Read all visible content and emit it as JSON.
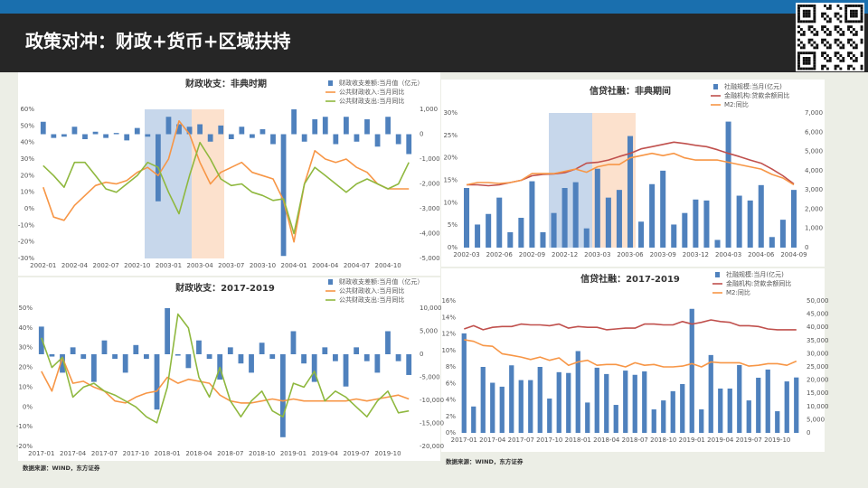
{
  "header": {
    "title": "政策对冲：财政+货币+区域扶持"
  },
  "sources": [
    "数据来源：WIND，东方证券",
    "数据来源：WIND，东方证券"
  ],
  "chart_data": [
    {
      "type": "combo",
      "title": "财政收支：非典时期",
      "legend": "top-right",
      "categories": [
        "2002-01",
        null,
        null,
        "2002-04",
        null,
        null,
        "2002-07",
        null,
        null,
        "2002-10",
        null,
        null,
        "2003-01",
        null,
        null,
        "2003-04",
        null,
        null,
        "2003-07",
        null,
        null,
        "2003-10",
        null,
        null,
        "2004-01",
        null,
        null,
        "2004-04",
        null,
        null,
        "2004-07",
        null,
        null,
        "2004-10",
        null,
        null
      ],
      "series": [
        {
          "name": "财政收支差额:当月值（亿元）",
          "type": "bar",
          "axis": "y2",
          "color": "#4f81bd",
          "values": [
            500,
            -150,
            -100,
            300,
            -200,
            100,
            -150,
            50,
            -250,
            250,
            -100,
            -2700,
            700,
            400,
            300,
            400,
            -300,
            350,
            -200,
            300,
            -150,
            200,
            -400,
            -4900,
            1000,
            -300,
            600,
            700,
            -400,
            700,
            -300,
            600,
            -500,
            700,
            -400,
            -800
          ]
        },
        {
          "name": "公共财政收入:当月同比",
          "type": "line",
          "color": "#f79646",
          "values": [
            13,
            -5,
            -7,
            2,
            8,
            14,
            16,
            15,
            17,
            22,
            25,
            20,
            30,
            53,
            45,
            28,
            15,
            22,
            25,
            28,
            22,
            20,
            18,
            5,
            -20,
            15,
            35,
            30,
            28,
            30,
            25,
            22,
            15,
            12,
            12,
            12
          ]
        },
        {
          "name": "公共财政支出:当月同比",
          "type": "line",
          "color": "#8fb83f",
          "values": [
            26,
            20,
            13,
            28,
            28,
            20,
            12,
            10,
            15,
            20,
            28,
            25,
            10,
            -3,
            20,
            40,
            30,
            18,
            14,
            15,
            10,
            8,
            5,
            6,
            -15,
            15,
            25,
            20,
            15,
            10,
            15,
            18,
            15,
            12,
            15,
            28
          ]
        }
      ],
      "ylim": [
        -30,
        60
      ],
      "yticks": [
        {
          "value": -30,
          "label": "-30%"
        },
        {
          "value": -20,
          "label": "-20%"
        },
        {
          "value": -10,
          "label": "-10%"
        },
        {
          "value": 0,
          "label": "0%"
        },
        {
          "value": 10,
          "label": "10%"
        },
        {
          "value": 20,
          "label": "20%"
        },
        {
          "value": 30,
          "label": "30%"
        },
        {
          "value": 40,
          "label": "40%"
        },
        {
          "value": 50,
          "label": "50%"
        },
        {
          "value": 60,
          "label": "60%"
        }
      ],
      "y2lim": [
        -5000,
        1000
      ],
      "y2ticks": [
        {
          "value": -5000,
          "label": "-5,000"
        },
        {
          "value": -4000,
          "label": "-4,000"
        },
        {
          "value": -3000,
          "label": "-3,000"
        },
        {
          "value": -2000,
          "label": "-2,000"
        },
        {
          "value": -1000,
          "label": "-1,000"
        },
        0,
        {
          "value": 1000,
          "label": "1,000"
        }
      ]
    },
    {
      "type": "combo",
      "title": "财政收支：2017-2019",
      "legend": "top-right",
      "categories": [
        "2017-01",
        null,
        null,
        "2017-04",
        null,
        null,
        "2017-07",
        null,
        null,
        "2017-10",
        null,
        null,
        "2018-01",
        null,
        null,
        "2018-04",
        null,
        null,
        "2018-07",
        null,
        null,
        "2018-10",
        null,
        null,
        "2019-01",
        null,
        null,
        "2019-04",
        null,
        null,
        "2019-07",
        null,
        null,
        "2019-10",
        null,
        null
      ],
      "series": [
        {
          "name": "财政收支差额:当月值（亿元）",
          "type": "bar",
          "axis": "y2",
          "color": "#4f81bd",
          "values": [
            6000,
            -500,
            -4000,
            1500,
            -1000,
            -6000,
            3000,
            -1000,
            -4000,
            2000,
            -1000,
            -12000,
            10000,
            -300,
            -3000,
            3000,
            -1000,
            -5500,
            1500,
            -2000,
            -4000,
            2500,
            -1000,
            -18000,
            5000,
            -2000,
            -6000,
            1500,
            -1500,
            -7000,
            1500,
            -1500,
            -4000,
            5000,
            -1500,
            -4500
          ]
        },
        {
          "name": "公共财政收入:当月同比",
          "type": "line",
          "color": "#f79646",
          "values": [
            18,
            8,
            25,
            12,
            13,
            10,
            8,
            3,
            2,
            5,
            7,
            8,
            15,
            12,
            14,
            13,
            12,
            6,
            3,
            2,
            2,
            3,
            4,
            3,
            4,
            3,
            3,
            3,
            3,
            3,
            4,
            3,
            4,
            5,
            6,
            4
          ]
        },
        {
          "name": "公共财政支出:当月同比",
          "type": "line",
          "color": "#8fb83f",
          "values": [
            35,
            20,
            25,
            5,
            10,
            12,
            8,
            6,
            3,
            0,
            -5,
            -8,
            10,
            47,
            40,
            15,
            5,
            20,
            3,
            -5,
            3,
            8,
            -2,
            -5,
            12,
            10,
            18,
            3,
            8,
            5,
            0,
            -5,
            3,
            8,
            -3,
            -2
          ]
        }
      ],
      "ylim": [
        -20,
        50
      ],
      "yticks": [
        {
          "value": -20,
          "label": "-20%"
        },
        {
          "value": -10,
          "label": "-10%"
        },
        {
          "value": 0,
          "label": "0%"
        },
        {
          "value": 10,
          "label": "10%"
        },
        {
          "value": 20,
          "label": "20%"
        },
        {
          "value": 30,
          "label": "30%"
        },
        {
          "value": 40,
          "label": "40%"
        },
        {
          "value": 50,
          "label": "50%"
        }
      ],
      "y2lim": [
        -20000,
        10000
      ],
      "y2ticks": [
        {
          "value": -20000,
          "label": "-20,000"
        },
        {
          "value": -15000,
          "label": "-15,000"
        },
        {
          "value": -10000,
          "label": "-10,000"
        },
        {
          "value": -5000,
          "label": "-5,000"
        },
        0,
        {
          "value": 5000,
          "label": "5,000"
        },
        {
          "value": 10000,
          "label": "10,000"
        }
      ]
    },
    {
      "type": "combo",
      "title": "信贷社融：非典期间",
      "legend": "top-right",
      "categories": [
        "2002-03",
        null,
        null,
        "2002-06",
        null,
        null,
        "2002-09",
        null,
        null,
        "2002-12",
        null,
        null,
        "2003-03",
        null,
        null,
        "2003-06",
        null,
        null,
        "2003-09",
        null,
        null,
        "2003-12",
        null,
        null,
        "2004-03",
        null,
        null,
        "2004-06",
        null,
        null,
        "2004-09"
      ],
      "series": [
        {
          "name": "社融规模:当月(亿元)",
          "type": "bar",
          "axis": "y2",
          "color": "#4f81bd",
          "values": [
            3100,
            1200,
            1750,
            2600,
            800,
            1550,
            3450,
            800,
            1800,
            3100,
            3400,
            1000,
            4100,
            2600,
            3000,
            5800,
            1350,
            3300,
            4000,
            1200,
            1800,
            2500,
            2450,
            400,
            6550,
            2700,
            2450,
            3250,
            550,
            1450,
            3000
          ]
        },
        {
          "name": "金融机构:贷款余额同比",
          "type": "line",
          "color": "#c0504d",
          "values": [
            14,
            14,
            13.8,
            14,
            14.5,
            15,
            16,
            16.3,
            16.4,
            16.7,
            17.5,
            18.8,
            19,
            19.5,
            20.3,
            21,
            22,
            22.5,
            23,
            23.5,
            23.2,
            22.8,
            22.5,
            21.8,
            21,
            20.3,
            19.5,
            18.8,
            17.5,
            16,
            14.2
          ]
        },
        {
          "name": "M2:同比",
          "type": "line",
          "color": "#f79646",
          "values": [
            14,
            14.5,
            14.5,
            14.3,
            14.5,
            15,
            16.5,
            16.5,
            16.5,
            17,
            17.5,
            16.8,
            18,
            18.5,
            18.5,
            20,
            20.5,
            21,
            20.5,
            21,
            20,
            19.5,
            19.5,
            19.5,
            19,
            18.5,
            18,
            17.5,
            16.3,
            15.5,
            14
          ]
        }
      ],
      "ylim": [
        0,
        30
      ],
      "yticks": [
        {
          "value": 0,
          "label": "0%"
        },
        {
          "value": 5,
          "label": "5%"
        },
        {
          "value": 10,
          "label": "10%"
        },
        {
          "value": 15,
          "label": "15%"
        },
        {
          "value": 20,
          "label": "20%"
        },
        {
          "value": 25,
          "label": "25%"
        },
        {
          "value": 30,
          "label": "30%"
        }
      ],
      "y2lim": [
        0,
        7000
      ],
      "y2ticks": [
        0,
        {
          "value": 1000,
          "label": "1,000"
        },
        {
          "value": 2000,
          "label": "2,000"
        },
        {
          "value": 3000,
          "label": "3,000"
        },
        {
          "value": 4000,
          "label": "4,000"
        },
        {
          "value": 5000,
          "label": "5,000"
        },
        {
          "value": 6000,
          "label": "6,000"
        },
        {
          "value": 7000,
          "label": "7,000"
        }
      ]
    },
    {
      "type": "combo",
      "title": "信贷社融：2017-2019",
      "legend": "top-right",
      "categories": [
        "2017-01",
        null,
        null,
        "2017-04",
        null,
        null,
        "2017-07",
        null,
        null,
        "2017-10",
        null,
        null,
        "2018-01",
        null,
        null,
        "2018-04",
        null,
        null,
        "2018-07",
        null,
        null,
        "2018-10",
        null,
        null,
        "2019-01",
        null,
        null,
        "2019-04",
        null,
        null,
        "2019-07",
        null,
        null,
        "2019-10",
        null,
        null
      ],
      "series": [
        {
          "name": "社融规模:当月(亿元)",
          "type": "bar",
          "axis": "y2",
          "color": "#4f81bd",
          "values": [
            37700,
            10000,
            25000,
            19000,
            17500,
            25600,
            20000,
            20000,
            25000,
            13000,
            23000,
            22700,
            31000,
            11500,
            24700,
            22300,
            10600,
            23600,
            22000,
            23300,
            8900,
            12300,
            15800,
            18500,
            47000,
            8900,
            29500,
            16800,
            16800,
            25700,
            12300,
            20900,
            24000,
            8200,
            19500,
            21000
          ]
        },
        {
          "name": "金融机构:贷款余额同比",
          "type": "line",
          "color": "#c0504d",
          "values": [
            12.6,
            13,
            12.5,
            12.8,
            12.9,
            12.9,
            13.2,
            13.1,
            13.1,
            13,
            13.2,
            12.7,
            12.9,
            12.8,
            12.8,
            12.5,
            12.6,
            12.7,
            12.7,
            13.2,
            13.2,
            13.1,
            13.1,
            13.5,
            13.2,
            13.4,
            13.7,
            13.5,
            13.4,
            13,
            13,
            12.9,
            12.6,
            12.5,
            12.5,
            12.5
          ]
        },
        {
          "name": "M2:同比",
          "type": "line",
          "color": "#f79646",
          "values": [
            11.3,
            11.1,
            10.6,
            10.5,
            9.6,
            9.4,
            9.2,
            8.9,
            9.2,
            8.8,
            9.1,
            8.2,
            8.6,
            8.8,
            8.2,
            8.3,
            8.3,
            8,
            8.5,
            8.2,
            8.3,
            8,
            8,
            8.1,
            8.4,
            8,
            8.6,
            8.5,
            8.5,
            8.5,
            8.1,
            8.2,
            8.4,
            8.4,
            8.2,
            8.7
          ]
        }
      ],
      "ylim": [
        0,
        16
      ],
      "yticks": [
        {
          "value": 0,
          "label": "0%"
        },
        {
          "value": 2,
          "label": "2%"
        },
        {
          "value": 4,
          "label": "4%"
        },
        {
          "value": 6,
          "label": "6%"
        },
        {
          "value": 8,
          "label": "8%"
        },
        {
          "value": 10,
          "label": "10%"
        },
        {
          "value": 12,
          "label": "12%"
        },
        {
          "value": 14,
          "label": "14%"
        },
        {
          "value": 16,
          "label": "16%"
        }
      ],
      "y2lim": [
        0,
        50000
      ],
      "y2ticks": [
        0,
        {
          "value": 5000,
          "label": "5,000"
        },
        {
          "value": 10000,
          "label": "10,000"
        },
        {
          "value": 15000,
          "label": "15,000"
        },
        {
          "value": 20000,
          "label": "20,000"
        },
        {
          "value": 25000,
          "label": "25,000"
        },
        {
          "value": 30000,
          "label": "30,000"
        },
        {
          "value": 35000,
          "label": "35,000"
        },
        {
          "value": 40000,
          "label": "40,000"
        },
        {
          "value": 45000,
          "label": "45,000"
        },
        {
          "value": 50000,
          "label": "50,000"
        }
      ]
    }
  ]
}
